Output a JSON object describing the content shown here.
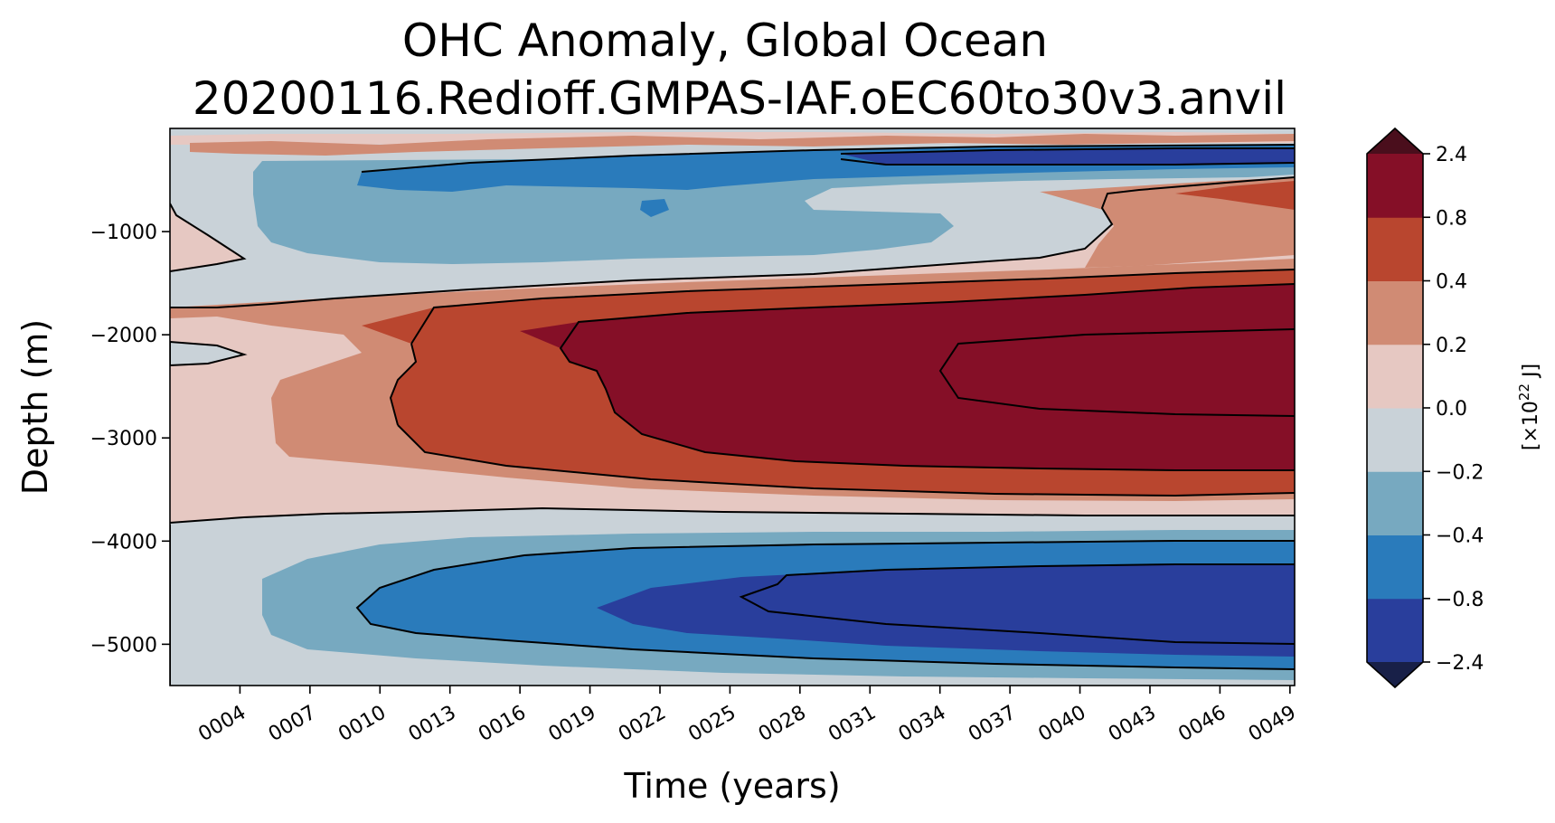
{
  "chart_data": {
    "type": "contourf",
    "title_line1": "OHC Anomaly, Global Ocean",
    "title_line2": "20200116.Redioff.GMPAS-IAF.oEC60to30v3.anvil",
    "xlabel": "Time (years)",
    "ylabel": "Depth (m)",
    "xlim": [
      1,
      49.2
    ],
    "ylim": [
      -5400,
      0
    ],
    "x_ticks": [
      4,
      7,
      10,
      13,
      16,
      19,
      22,
      25,
      28,
      31,
      34,
      37,
      40,
      43,
      46,
      49
    ],
    "x_tick_labels": [
      "0004",
      "0007",
      "0010",
      "0013",
      "0016",
      "0019",
      "0022",
      "0025",
      "0028",
      "0031",
      "0034",
      "0037",
      "0040",
      "0043",
      "0046",
      "0049"
    ],
    "y_ticks": [
      -1000,
      -2000,
      -3000,
      -4000,
      -5000
    ],
    "y_tick_labels": [
      "−1000",
      "−2000",
      "−3000",
      "−4000",
      "−5000"
    ],
    "colorbar": {
      "label_prefix": "[×10",
      "label_exp": "22",
      "label_suffix": " J]",
      "levels": [
        -2.4,
        -0.8,
        -0.4,
        -0.2,
        0.0,
        0.2,
        0.4,
        0.8,
        2.4
      ],
      "tick_labels": [
        "−2.4",
        "−0.8",
        "−0.4",
        "−0.2",
        "0.0",
        "0.2",
        "0.4",
        "0.8",
        "2.4"
      ],
      "colors": [
        "#293e9c",
        "#2a7bbb",
        "#77a9c0",
        "#c9d2d8",
        "#e6c8c2",
        "#d08b74",
        "#b9462f",
        "#850f27"
      ],
      "extend_low_color": "#182048",
      "extend_high_color": "#4a0e1c",
      "contour_color": "#000000"
    },
    "regions": [
      {
        "level": 0.0,
        "note": "near-zero background"
      },
      {
        "level": 0.0,
        "depth_range": [
          -5400,
          -3700
        ],
        "time_range": [
          1,
          49
        ],
        "sign": "negative",
        "note": "deep cooling below 3700 m"
      },
      {
        "level": -0.8,
        "depth_range": [
          -5300,
          -3900
        ],
        "time_range": [
          11,
          49
        ],
        "peak": "< -0.8"
      },
      {
        "level": 0.8,
        "depth_range": [
          -3600,
          -1400
        ],
        "time_range": [
          11,
          49
        ],
        "peak": "> 0.8"
      },
      {
        "level": -0.4,
        "depth_range": [
          -1600,
          -300
        ],
        "time_range": [
          1,
          40
        ],
        "note": "upper-ocean cooling"
      },
      {
        "level": 0.4,
        "depth_range": [
          -1300,
          -400
        ],
        "time_range": [
          38,
          49
        ],
        "note": "upper-ocean warming late"
      }
    ]
  }
}
